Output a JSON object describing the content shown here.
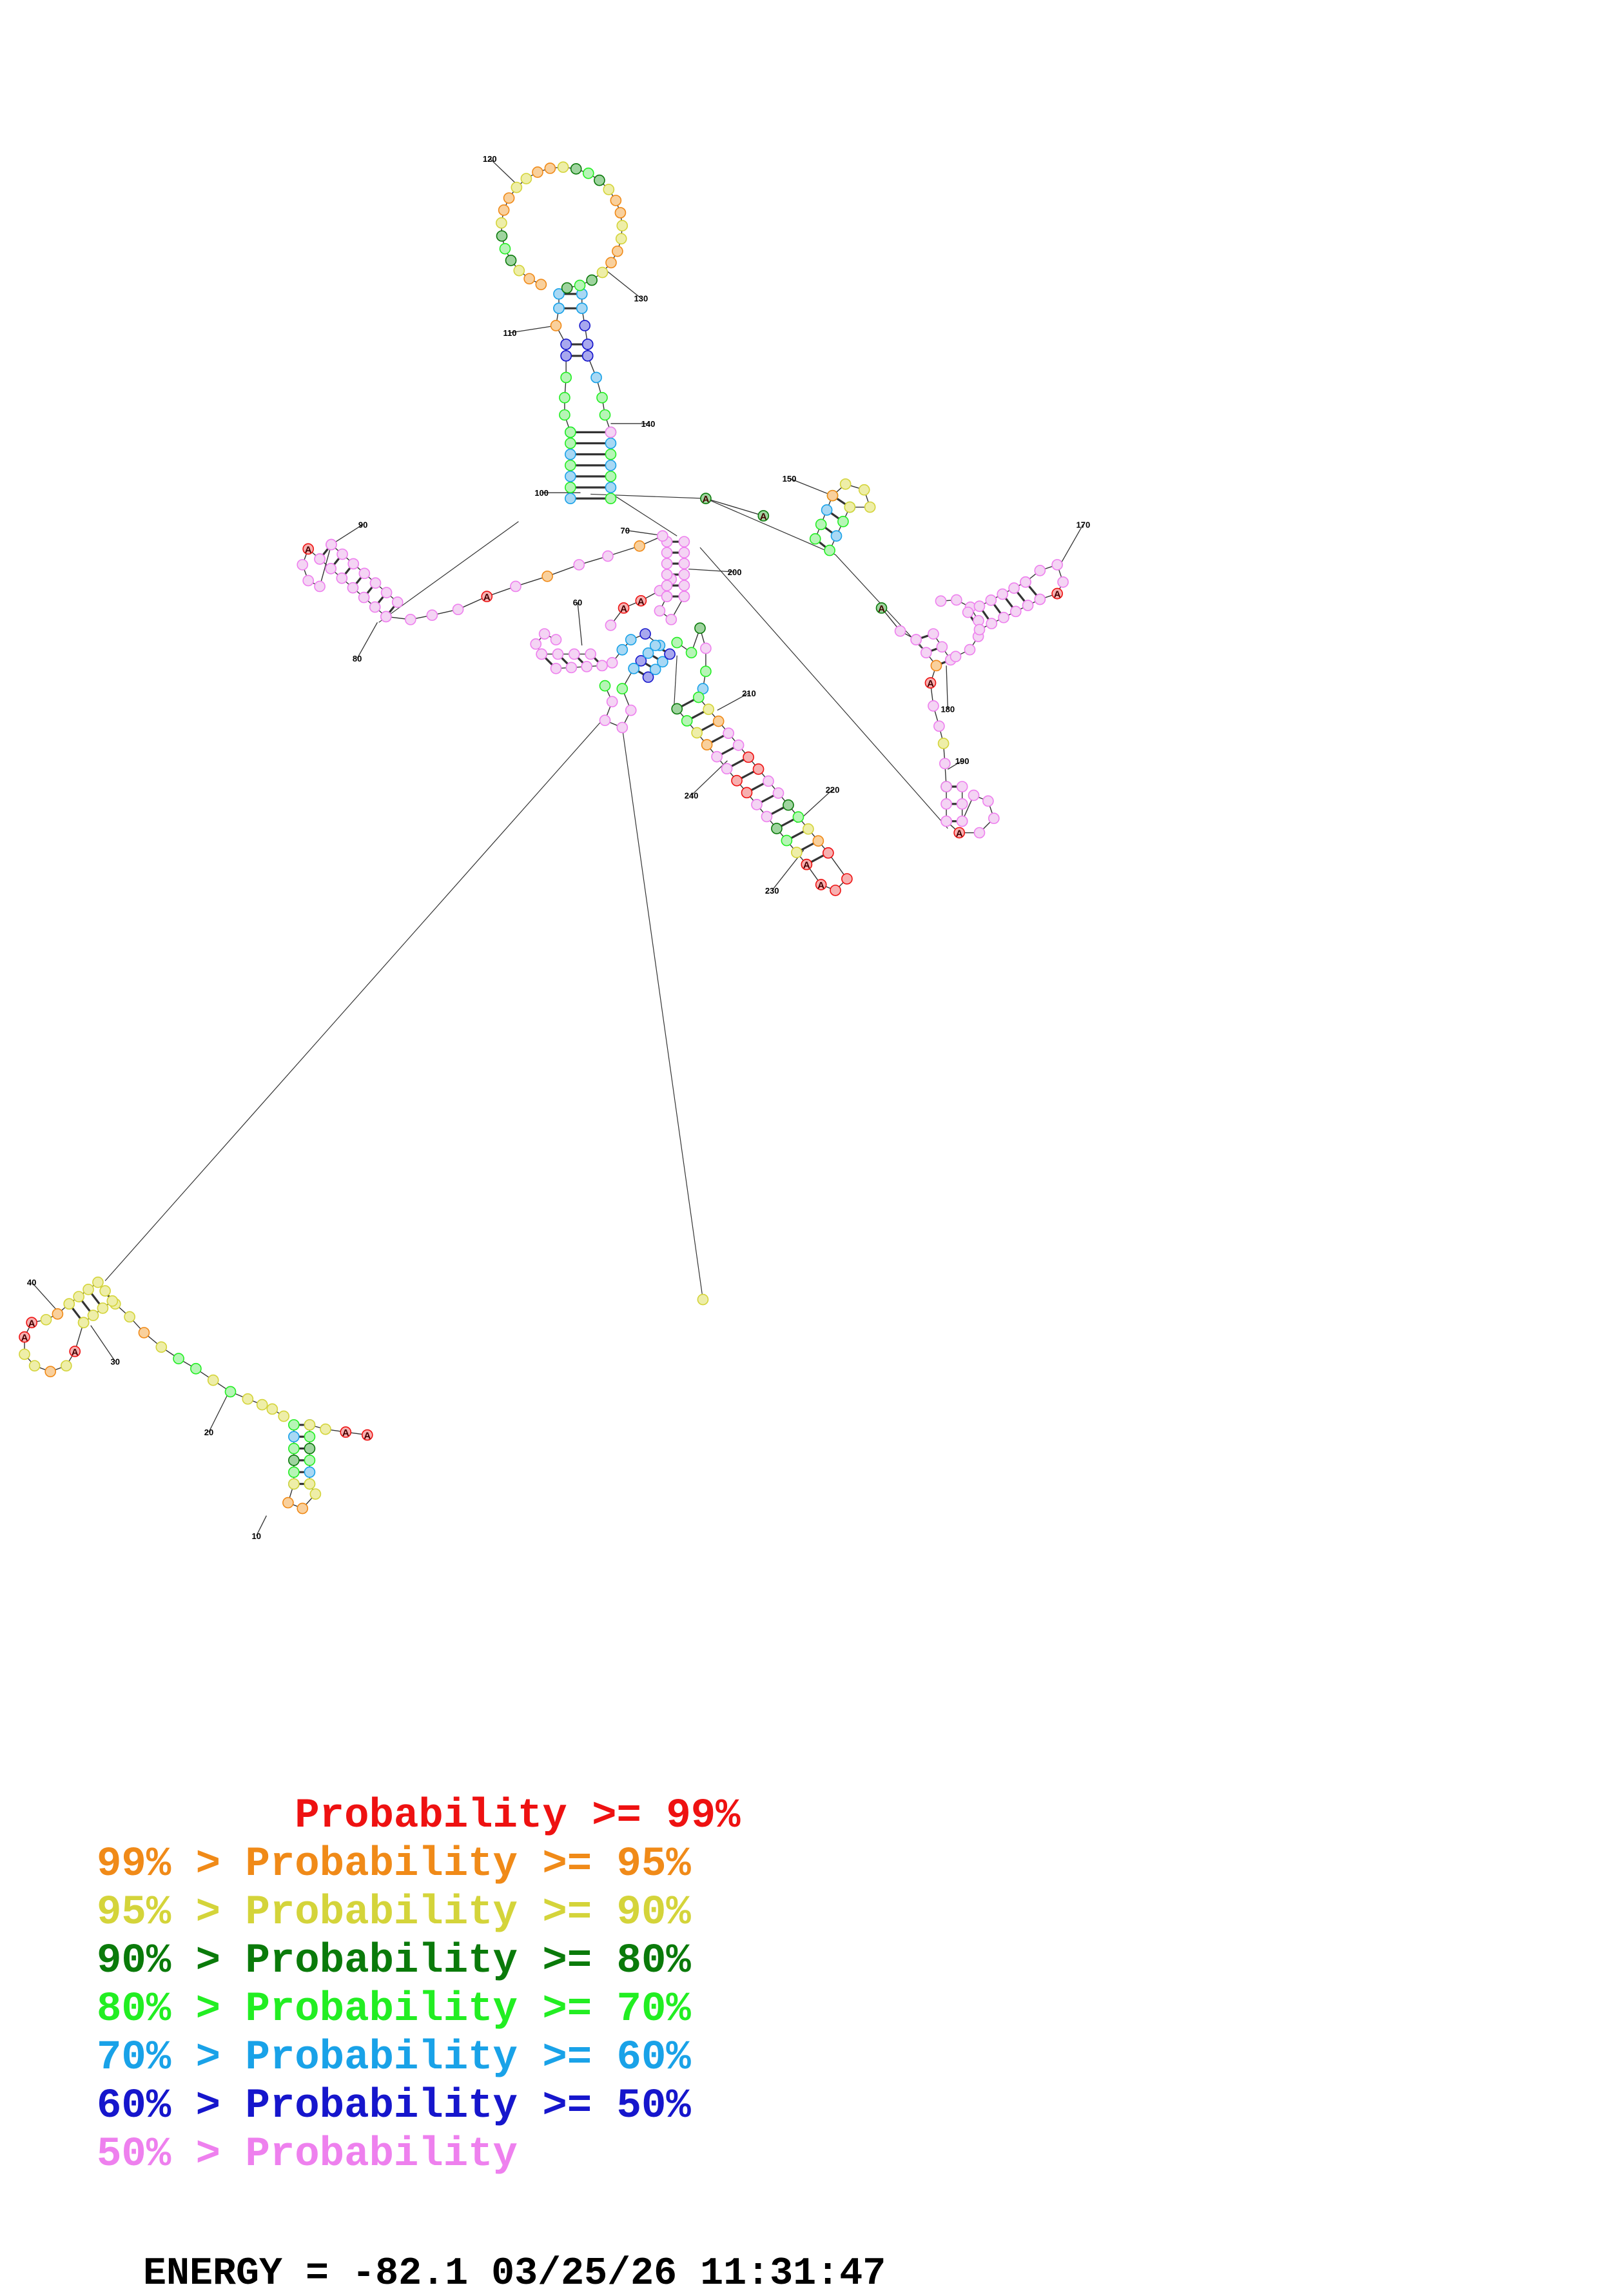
{
  "diagram": {
    "colors": {
      "p99": "#ee1111",
      "p95": "#f08a18",
      "p90": "#d4d43a",
      "p80": "#0a7a0a",
      "p70": "#22ee22",
      "p60": "#19a2e8",
      "p50": "#1616cc",
      "plow": "#ee80ee"
    },
    "position_labels": [
      "10",
      "20",
      "30",
      "40",
      "60",
      "70",
      "80",
      "90",
      "100",
      "110",
      "120",
      "130",
      "140",
      "150",
      "170",
      "180",
      "190",
      "200",
      "210",
      "220",
      "230",
      "240"
    ]
  },
  "legend": [
    {
      "left": "        ",
      "right": "Probability >= 99%",
      "left_color": "p99",
      "right_color": "p99"
    },
    {
      "left": "99% > ",
      "right": "Probability >= 95%",
      "left_color": "p95",
      "right_color": "p95"
    },
    {
      "left": "95% > ",
      "right": "Probability >= 90%",
      "left_color": "p90",
      "right_color": "p90"
    },
    {
      "left": "90% > ",
      "right": "Probability >= 80%",
      "left_color": "p80",
      "right_color": "p80"
    },
    {
      "left": "80% > ",
      "right": "Probability >= 70%",
      "left_color": "p70",
      "right_color": "p70"
    },
    {
      "left": "70% > ",
      "right": "Probability >= 60%",
      "left_color": "p60",
      "right_color": "p60"
    },
    {
      "left": "60% > ",
      "right": "Probability >= 50%",
      "left_color": "p50",
      "right_color": "p50"
    },
    {
      "left": "50% > ",
      "right": "Probability",
      "left_color": "plow",
      "right_color": "plow"
    }
  ],
  "footer": {
    "energy_label": "ENERGY = -82.1",
    "date": "03/25/26",
    "time": "11:31:47"
  }
}
